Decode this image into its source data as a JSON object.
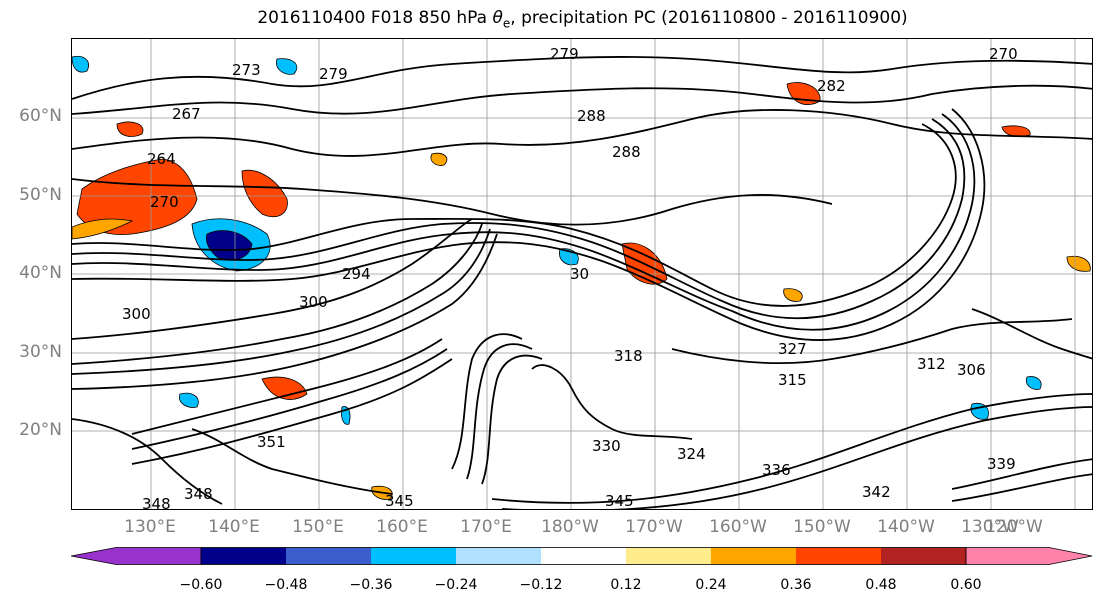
{
  "title": {
    "prefix": "2016110400 F018 850 hPa ",
    "symbol": "θ",
    "subscript": "e",
    "suffix": ", precipitation PC (2016110800 - 2016110900)"
  },
  "latitude_labels": [
    "60°N",
    "50°N",
    "40°N",
    "30°N",
    "20°N"
  ],
  "longitude_labels": [
    "130°E",
    "140°E",
    "150°E",
    "160°E",
    "170°E",
    "180°W",
    "170°W",
    "160°W",
    "150°W",
    "140°W",
    "130°W",
    "120°W"
  ],
  "contour_labels": [
    "279",
    "279",
    "270",
    "273",
    "267",
    "282",
    "264",
    "288",
    "288",
    "270",
    "294",
    "300",
    "30",
    "300",
    "318",
    "327",
    "315",
    "312",
    "306",
    "351",
    "348",
    "348",
    "345",
    "345",
    "336",
    "330",
    "324",
    "339",
    "342"
  ],
  "colorbar": {
    "colors": [
      "#9932cc",
      "#00008b",
      "#3a5fcd",
      "#00bfff",
      "#b0e2ff",
      "#ffffff",
      "#ffec8b",
      "#ffa500",
      "#ff4500",
      "#b22222",
      "#ff82ab"
    ],
    "tick_labels": [
      "−0.60",
      "−0.48",
      "−0.36",
      "−0.24",
      "−0.12",
      "0.12",
      "0.24",
      "0.36",
      "0.48",
      "0.60"
    ]
  },
  "colors": {
    "positive_shading": "#ffa500",
    "strong_positive_shading": "#ff4500",
    "negative_shading": "#00bfff",
    "strong_negative_shading": "#00008b",
    "grid": "#999999",
    "axis_label": "#808080"
  }
}
